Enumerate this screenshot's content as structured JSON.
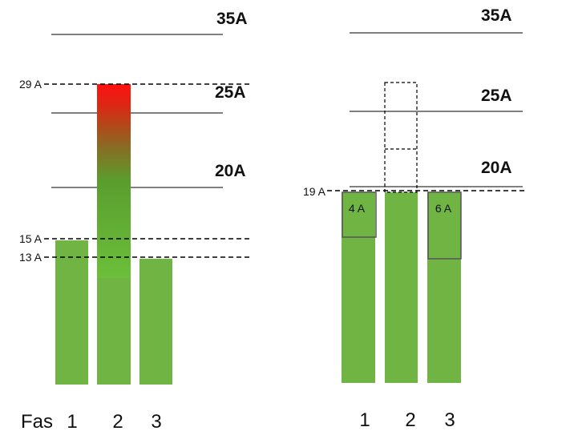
{
  "left": {
    "levels": [
      "35A",
      "25A",
      "20A"
    ],
    "markers": [
      "29 A",
      "15 A",
      "13 A"
    ],
    "axis_title": "Fas",
    "phases": [
      "1",
      "2",
      "3"
    ]
  },
  "right": {
    "levels": [
      "35A",
      "25A",
      "20A"
    ],
    "markers": [
      "19 A"
    ],
    "boxes": [
      "4 A",
      "6 A"
    ],
    "phases": [
      "1",
      "2",
      "3"
    ]
  }
}
